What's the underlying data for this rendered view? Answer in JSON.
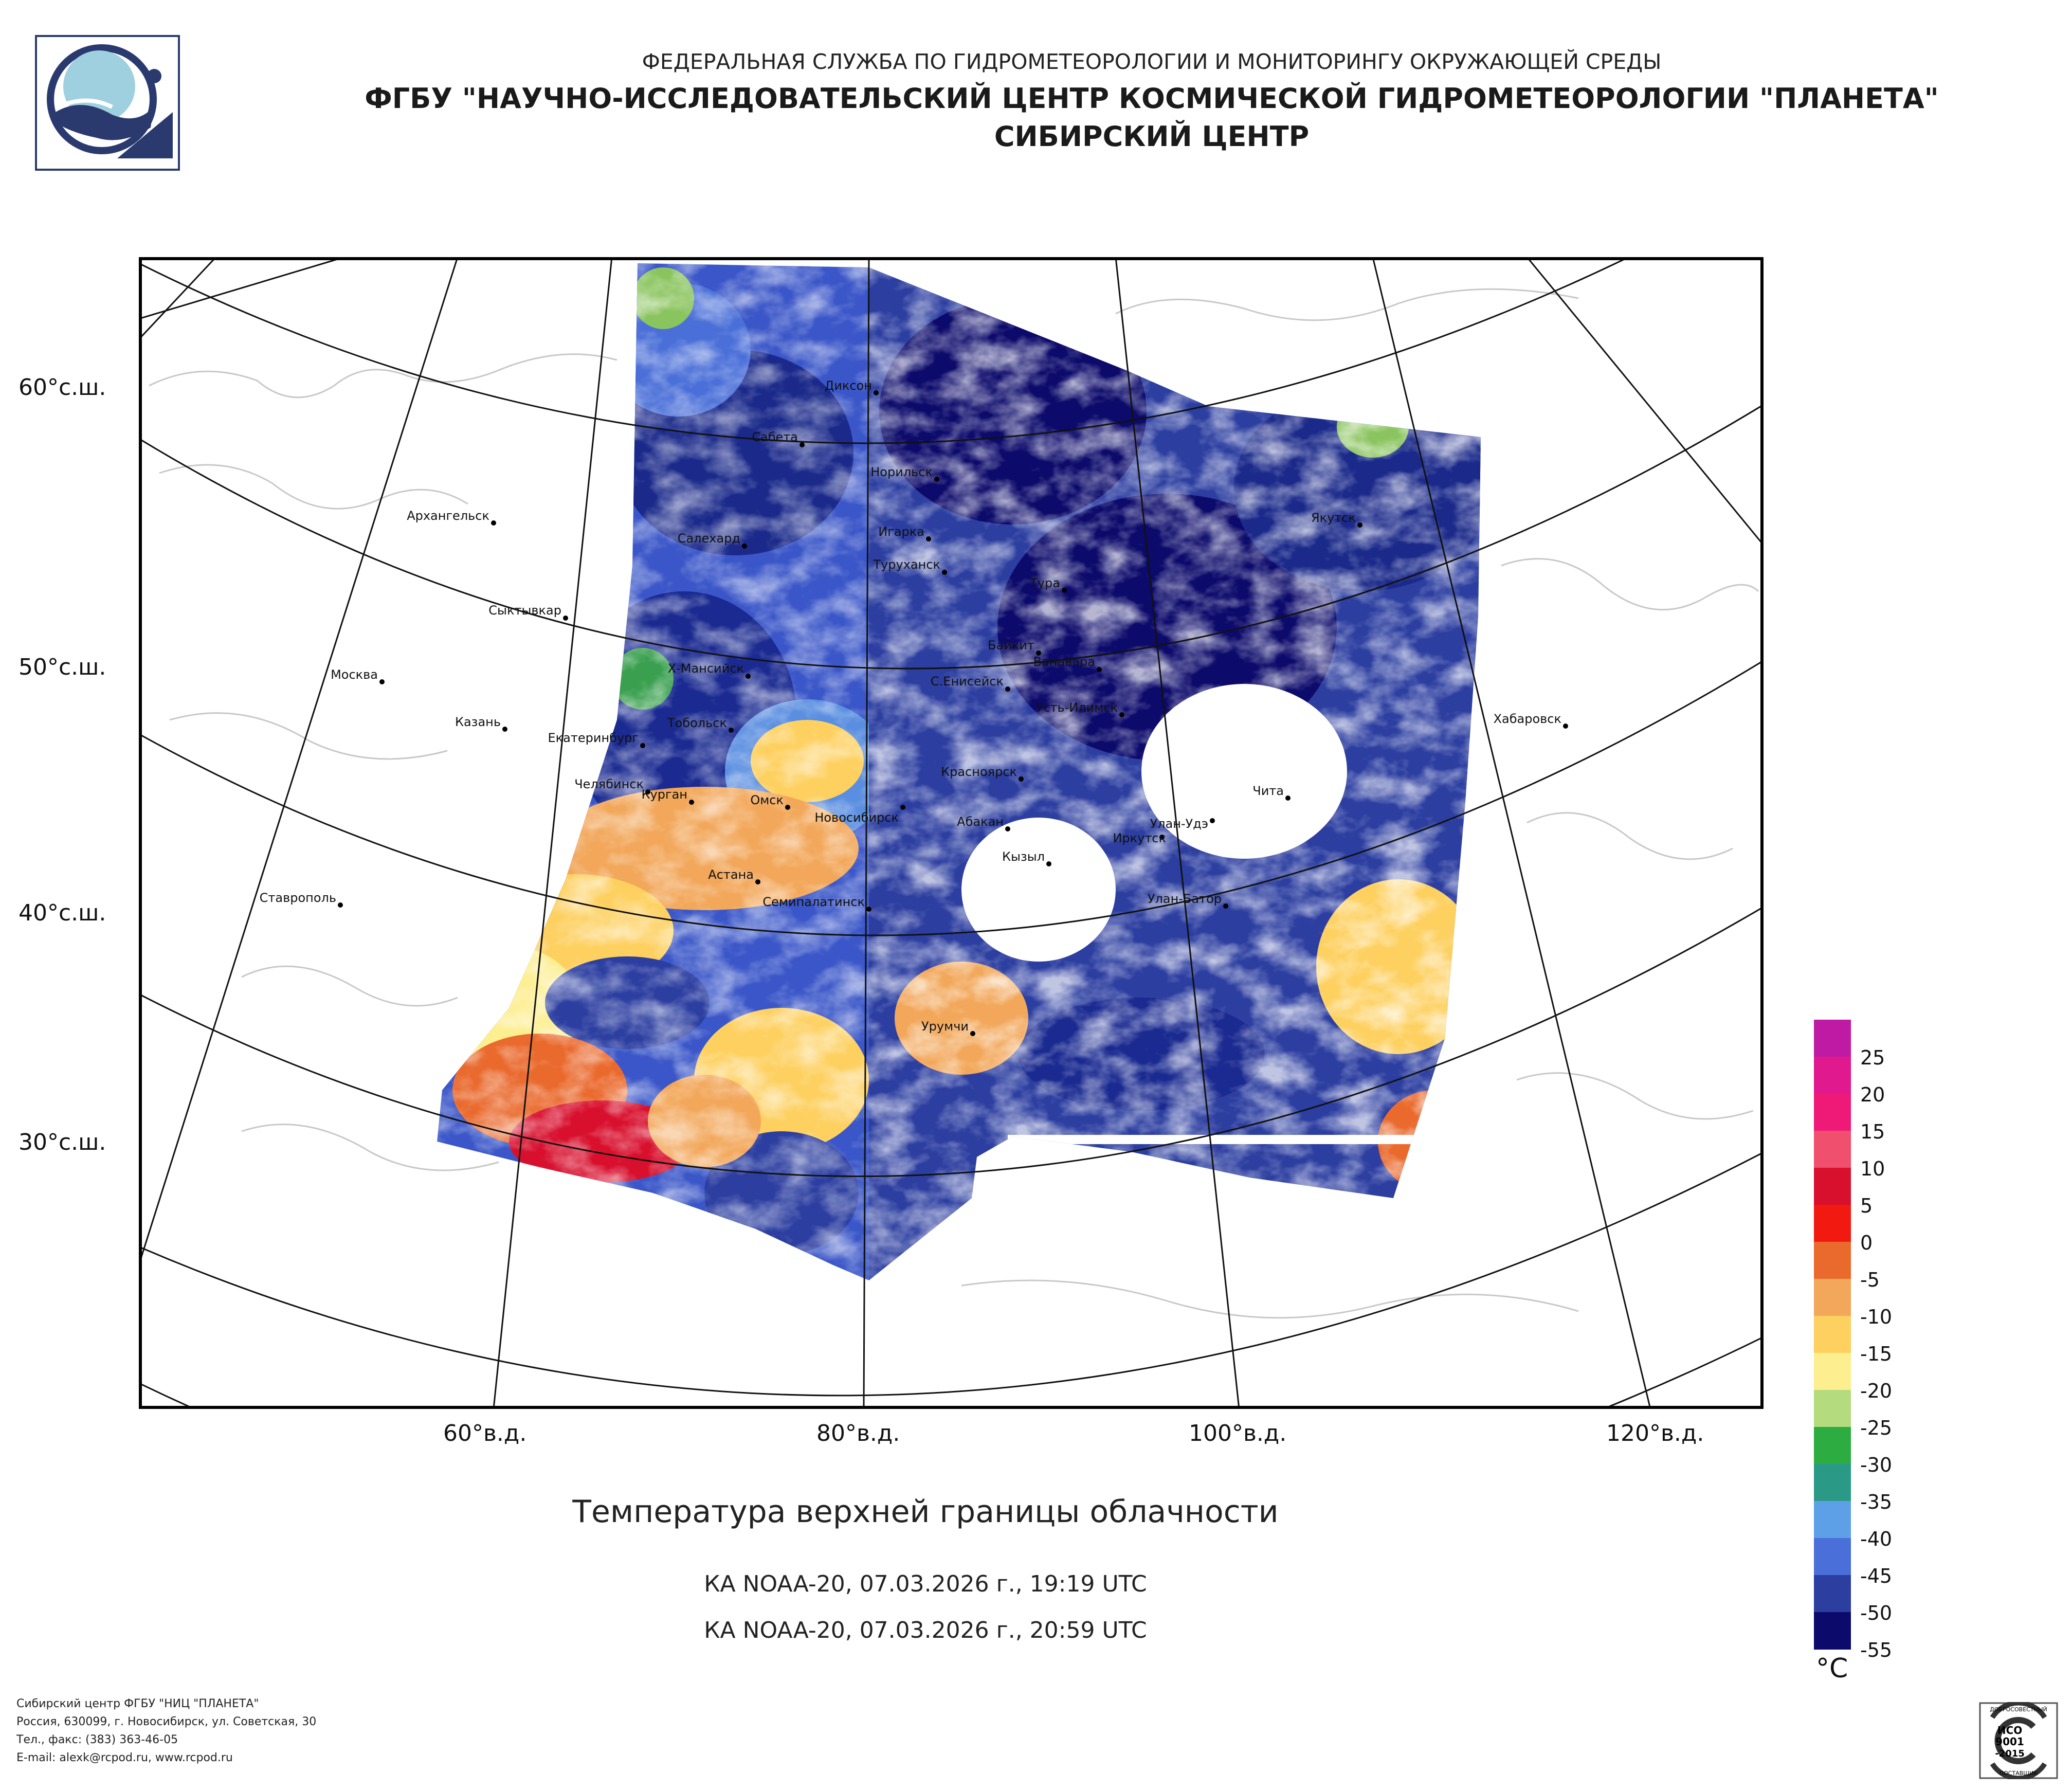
{
  "header": {
    "agency": "ФЕДЕРАЛЬНАЯ СЛУЖБА ПО ГИДРОМЕТЕОРОЛОГИИ И МОНИТОРИНГУ ОКРУЖАЮЩЕЙ СРЕДЫ",
    "institute": "ФГБУ \"НАУЧНО-ИССЛЕДОВАТЕЛЬСКИЙ ЦЕНТР КОСМИЧЕСКОЙ ГИДРОМЕТЕОРОЛОГИИ \"ПЛАНЕТА\"",
    "center": "СИБИРСКИЙ ЦЕНТР"
  },
  "map": {
    "title": "Температура верхней границы облачности",
    "passes": [
      "КА NOAA-20, 07.03.2026 г., 19:19 UTC",
      "КА NOAA-20, 07.03.2026 г., 20:59 UTC"
    ],
    "lat_labels": [
      "60°с.ш.",
      "50°с.ш.",
      "40°с.ш.",
      "30°с.ш."
    ],
    "lon_labels": [
      "60°в.д.",
      "80°в.д.",
      "100°в.д.",
      "120°в.д."
    ],
    "cities": [
      "Диксон",
      "Сабета",
      "Норильск",
      "Архангельск",
      "Салехард",
      "Игарка",
      "Туруханск",
      "Тура",
      "Якутск",
      "Сыктывкар",
      "Байкит",
      "Ванавара",
      "Москва",
      "Х-Мансийск",
      "С.Енисейск",
      "Усть-Илимск",
      "Казань",
      "Екатеринбург",
      "Тобольск",
      "Хабаровск",
      "Челябинск",
      "Курган",
      "Омск",
      "Новосибирск",
      "Красноярск",
      "Чита",
      "Улан-Удэ",
      "Иркутск",
      "Абакан",
      "Кызыл",
      "Ставрополь",
      "Астана",
      "Семипалатинск",
      "Улан-Батор",
      "Урумчи"
    ]
  },
  "legend": {
    "unit": "°C",
    "ticks": [
      "25",
      "20",
      "15",
      "10",
      "5",
      "0",
      "-5",
      "-10",
      "-15",
      "-20",
      "-25",
      "-30",
      "-35",
      "-40",
      "-45",
      "-50",
      "-55"
    ],
    "colors": [
      "#bf1aa3",
      "#e0198f",
      "#ef1a78",
      "#f04f6e",
      "#d8102e",
      "#f21a10",
      "#ea6a2e",
      "#f2a75a",
      "#fdd060",
      "#fdee90",
      "#b4dc7e",
      "#2dac42",
      "#2a9a86",
      "#5ea0e8",
      "#4a6fd8",
      "#2c3ea0",
      "#0c0a6a"
    ]
  },
  "footer": {
    "lines": [
      "Сибирский центр ФГБУ \"НИЦ \"ПЛАНЕТА\"",
      "Россия, 630099, г. Новосибирск, ул. Советская, 30",
      "Тел., факс: (383) 363-46-05",
      "E-mail: alexk@rcpod.ru, www.rcpod.ru"
    ]
  },
  "iso_badge": {
    "top": "ДОБРОСОВЕСТНЫЙ",
    "line1": "ИСО",
    "line2": "9001",
    "line3": "-2015",
    "bottom": "ПОСТАВЩИК"
  }
}
